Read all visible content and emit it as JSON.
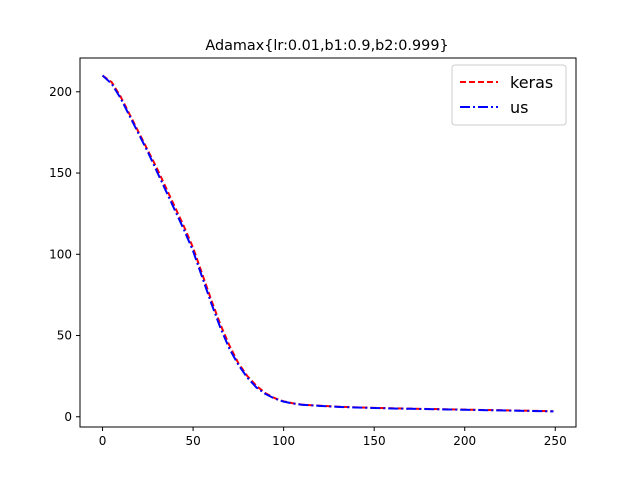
{
  "chart_data": {
    "type": "line",
    "title": "Adamax{lr:0.01,b1:0.9,b2:0.999}",
    "xlabel": "",
    "ylabel": "",
    "xlim": [
      -12.45,
      261.45
    ],
    "ylim": [
      -6.3,
      220.8
    ],
    "xticks": [
      0,
      50,
      100,
      150,
      200,
      250
    ],
    "yticks": [
      0,
      50,
      100,
      150,
      200
    ],
    "grid": false,
    "legend_position": "top-right",
    "x": [
      0,
      5,
      10,
      15,
      20,
      25,
      30,
      35,
      40,
      45,
      50,
      55,
      60,
      65,
      70,
      75,
      80,
      85,
      90,
      95,
      100,
      105,
      110,
      120,
      130,
      140,
      150,
      160,
      170,
      180,
      190,
      200,
      210,
      220,
      230,
      240,
      249
    ],
    "series": [
      {
        "name": "keras",
        "color": "#ff0000",
        "dash": "dashed",
        "values": [
          210,
          206,
          197,
          186,
          175,
          164,
          153,
          141,
          129,
          117,
          104,
          88,
          72,
          57,
          44,
          33,
          25,
          19,
          14.5,
          11.5,
          9.5,
          8.3,
          7.5,
          6.8,
          6.2,
          5.8,
          5.5,
          5.2,
          5.0,
          4.8,
          4.6,
          4.4,
          4.2,
          4.0,
          3.8,
          3.6,
          3.4
        ]
      },
      {
        "name": "us",
        "color": "#0000ff",
        "dash": "dashdot",
        "values": [
          210,
          205,
          196,
          185,
          174,
          163,
          151,
          139,
          127,
          115,
          102,
          86,
          70,
          55,
          42,
          32,
          24,
          18,
          14,
          11.2,
          9.3,
          8.2,
          7.4,
          6.7,
          6.1,
          5.7,
          5.4,
          5.1,
          4.9,
          4.7,
          4.5,
          4.3,
          4.1,
          3.9,
          3.7,
          3.5,
          3.3
        ]
      }
    ]
  }
}
